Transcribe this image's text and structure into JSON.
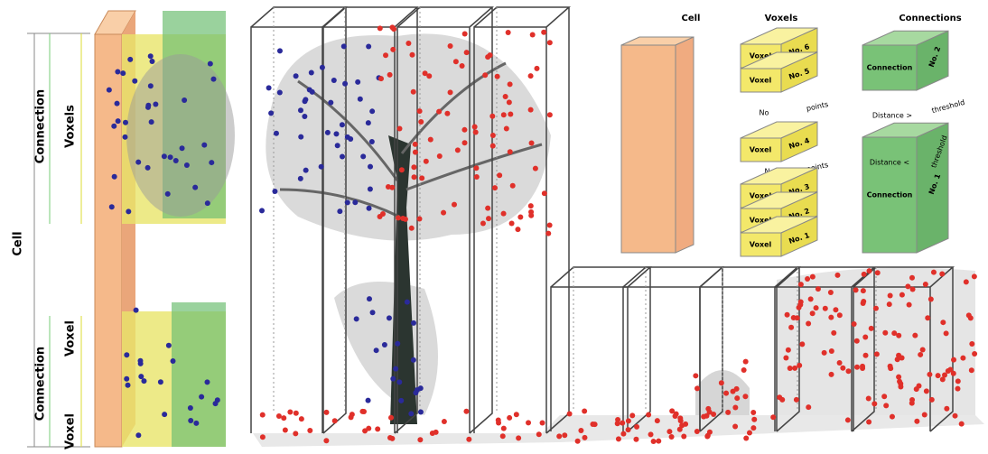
{
  "left_labels": {
    "cell": "Cell",
    "connection_top": "Connection",
    "voxels": "Voxels",
    "voxel_middle": "Voxel",
    "connection_bottom": "Connection",
    "voxel_bottom": "Voxel"
  },
  "legend": {
    "cell": {
      "title": "Cell"
    },
    "voxels": {
      "title": "Voxels",
      "top_stack": [
        {
          "label": "Voxel",
          "number": "No. 6"
        },
        {
          "label": "Voxel",
          "number": "No. 5"
        }
      ],
      "note_1": {
        "left": "No",
        "right": "points"
      },
      "single": {
        "label": "Voxel",
        "number": "No. 4"
      },
      "note_2": {
        "left": "No",
        "right": "points"
      },
      "bottom_stack": [
        {
          "label": "Voxel",
          "number": "No. 3"
        },
        {
          "label": "Voxel",
          "number": "No. 2"
        },
        {
          "label": "Voxel",
          "number": "No. 1"
        }
      ]
    },
    "connections": {
      "title": "Connections",
      "top": {
        "label": "Connection",
        "number": "No. 2"
      },
      "note_top": {
        "left": "Distance >",
        "right": "threshold"
      },
      "note_bottom": {
        "left": "Distance <",
        "right": "threshold"
      },
      "bottom": {
        "label": "Connection",
        "number": "No. 1"
      }
    }
  }
}
